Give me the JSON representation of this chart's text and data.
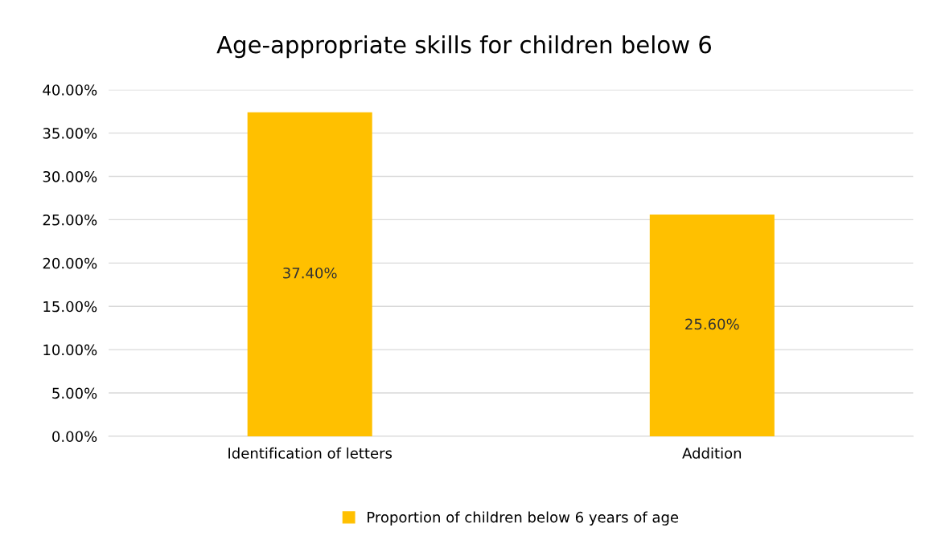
{
  "chart_data": {
    "type": "bar",
    "title": "Age-appropriate skills for children below 6",
    "categories": [
      "Identification of letters",
      "Addition"
    ],
    "series": [
      {
        "name": "Proportion of children below 6 years of age",
        "color": "#ffc000",
        "values": [
          37.4,
          25.6
        ],
        "value_labels": [
          "37.40%",
          "25.60%"
        ]
      }
    ],
    "ylim": [
      0,
      40
    ],
    "yticks": [
      {
        "value": 0,
        "label": "0.00%"
      },
      {
        "value": 5,
        "label": "5.00%"
      },
      {
        "value": 10,
        "label": "10.00%"
      },
      {
        "value": 15,
        "label": "15.00%"
      },
      {
        "value": 20,
        "label": "20.00%"
      },
      {
        "value": 25,
        "label": "25.00%"
      },
      {
        "value": 30,
        "label": "30.00%"
      },
      {
        "value": 35,
        "label": "35.00%"
      },
      {
        "value": 40,
        "label": "40.00%"
      }
    ],
    "grid": "y",
    "legend": "bottom"
  }
}
